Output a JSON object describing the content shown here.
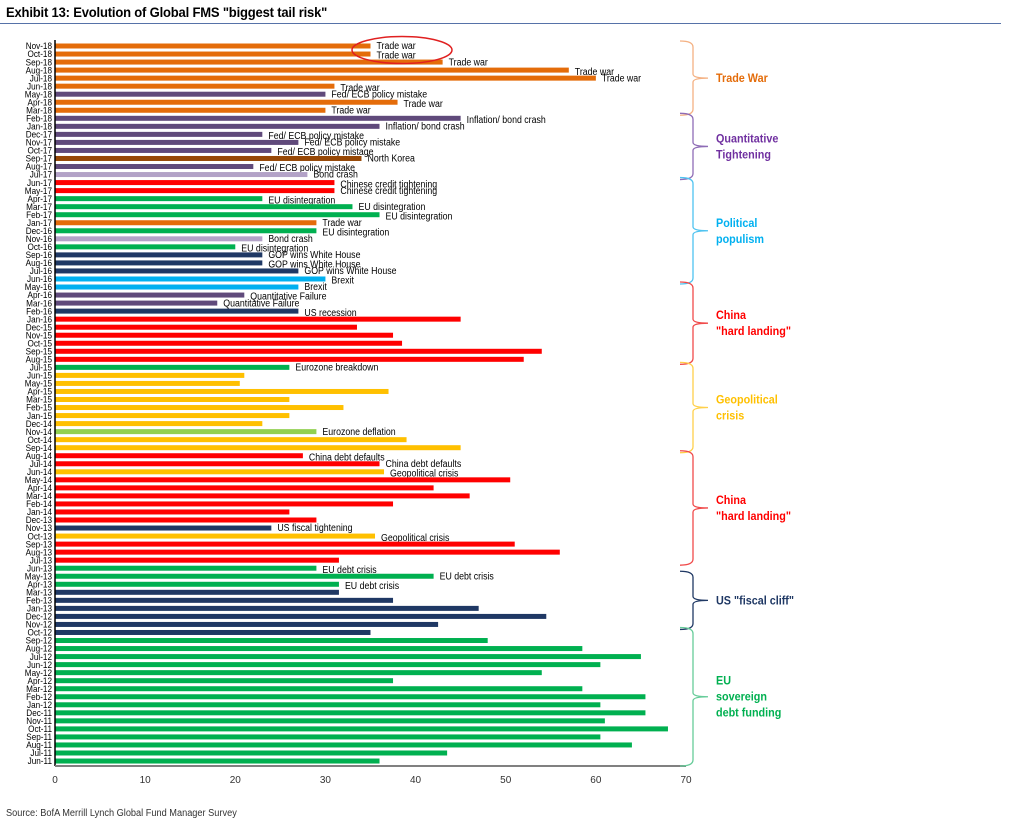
{
  "chart_data": {
    "type": "bar",
    "orientation": "horizontal",
    "title": "Exhibit 13: Evolution of Global FMS \"biggest tail risk\"",
    "xlabel": "",
    "ylabel": "",
    "xlim": [
      0,
      70
    ],
    "xticks": [
      "0",
      "10",
      "20",
      "30",
      "40",
      "50",
      "60",
      "70"
    ],
    "grid": false,
    "source": "Source: BofA Merrill Lynch Global Fund Manager Survey",
    "colors": {
      "trade": "#E46C0A",
      "fed": "#604A7B",
      "lavender": "#B3A2C7",
      "brown": "#974806",
      "red": "#FF0000",
      "green": "#00B050",
      "navy": "#1F3864",
      "lightblue": "#00B0F0",
      "yellow": "#FFC000",
      "lightgreen": "#92D050"
    },
    "bars": [
      {
        "category": "Nov-18",
        "value": 35,
        "color": "trade",
        "label": "Trade war"
      },
      {
        "category": "Oct-18",
        "value": 35,
        "color": "trade",
        "label": "Trade war"
      },
      {
        "category": "Sep-18",
        "value": 43,
        "color": "trade",
        "label": "Trade war"
      },
      {
        "category": "Aug-18",
        "value": 57,
        "color": "trade",
        "label": "Trade war"
      },
      {
        "category": "Jul-18",
        "value": 60,
        "color": "trade",
        "label": "Trade war"
      },
      {
        "category": "Jun-18",
        "value": 31,
        "color": "trade",
        "label": "Trade war"
      },
      {
        "category": "May-18",
        "value": 30,
        "color": "fed",
        "label": "Fed/ ECB policy mistake"
      },
      {
        "category": "Apr-18",
        "value": 38,
        "color": "trade",
        "label": "Trade war"
      },
      {
        "category": "Mar-18",
        "value": 30,
        "color": "trade",
        "label": "Trade war"
      },
      {
        "category": "Feb-18",
        "value": 45,
        "color": "fed",
        "label": "Inflation/ bond crash"
      },
      {
        "category": "Jan-18",
        "value": 36,
        "color": "fed",
        "label": "Inflation/ bond crash"
      },
      {
        "category": "Dec-17",
        "value": 23,
        "color": "fed",
        "label": "Fed/ ECB policy mistake"
      },
      {
        "category": "Nov-17",
        "value": 27,
        "color": "fed",
        "label": "Fed/ ECB policy mistake"
      },
      {
        "category": "Oct-17",
        "value": 24,
        "color": "fed",
        "label": "Fed/ ECB policy mistage"
      },
      {
        "category": "Sep-17",
        "value": 34,
        "color": "brown",
        "label": "North Korea"
      },
      {
        "category": "Aug-17",
        "value": 22,
        "color": "fed",
        "label": "Fed/ ECB policy mistake"
      },
      {
        "category": "Jul-17",
        "value": 28,
        "color": "lavender",
        "label": "Bond crash"
      },
      {
        "category": "Jun-17",
        "value": 31,
        "color": "red",
        "label": "Chinese credit tightening"
      },
      {
        "category": "May-17",
        "value": 31,
        "color": "red",
        "label": "Chinese credit tightening"
      },
      {
        "category": "Apr-17",
        "value": 23,
        "color": "green",
        "label": "EU disintegration"
      },
      {
        "category": "Mar-17",
        "value": 33,
        "color": "green",
        "label": "EU disintegration"
      },
      {
        "category": "Feb-17",
        "value": 36,
        "color": "green",
        "label": "EU disintegration"
      },
      {
        "category": "Jan-17",
        "value": 29,
        "color": "trade",
        "label": "Trade war"
      },
      {
        "category": "Dec-16",
        "value": 29,
        "color": "green",
        "label": "EU disintegration"
      },
      {
        "category": "Nov-16",
        "value": 23,
        "color": "lavender",
        "label": "Bond crash"
      },
      {
        "category": "Oct-16",
        "value": 20,
        "color": "green",
        "label": "EU disintegration"
      },
      {
        "category": "Sep-16",
        "value": 23,
        "color": "navy",
        "label": "GOP wins White House"
      },
      {
        "category": "Aug-16",
        "value": 23,
        "color": "navy",
        "label": "GOP wins White House"
      },
      {
        "category": "Jul-16",
        "value": 27,
        "color": "navy",
        "label": "GOP wins White House"
      },
      {
        "category": "Jun-16",
        "value": 30,
        "color": "lightblue",
        "label": "Brexit"
      },
      {
        "category": "May-16",
        "value": 27,
        "color": "lightblue",
        "label": "Brexit"
      },
      {
        "category": "Apr-16",
        "value": 21,
        "color": "fed",
        "label": "Quantitative Failure"
      },
      {
        "category": "Mar-16",
        "value": 18,
        "color": "fed",
        "label": "Quantitative Failure"
      },
      {
        "category": "Feb-16",
        "value": 27,
        "color": "navy",
        "label": "US recession"
      },
      {
        "category": "Jan-16",
        "value": 45,
        "color": "red",
        "label": ""
      },
      {
        "category": "Dec-15",
        "value": 33.5,
        "color": "red",
        "label": ""
      },
      {
        "category": "Nov-15",
        "value": 37.5,
        "color": "red",
        "label": ""
      },
      {
        "category": "Oct-15",
        "value": 38.5,
        "color": "red",
        "label": ""
      },
      {
        "category": "Sep-15",
        "value": 54,
        "color": "red",
        "label": ""
      },
      {
        "category": "Aug-15",
        "value": 52,
        "color": "red",
        "label": ""
      },
      {
        "category": "Jul-15",
        "value": 26,
        "color": "green",
        "label": "Eurozone breakdown"
      },
      {
        "category": "Jun-15",
        "value": 21,
        "color": "yellow",
        "label": ""
      },
      {
        "category": "May-15",
        "value": 20.5,
        "color": "yellow",
        "label": ""
      },
      {
        "category": "Apr-15",
        "value": 37,
        "color": "yellow",
        "label": ""
      },
      {
        "category": "Mar-15",
        "value": 26,
        "color": "yellow",
        "label": ""
      },
      {
        "category": "Feb-15",
        "value": 32,
        "color": "yellow",
        "label": ""
      },
      {
        "category": "Jan-15",
        "value": 26,
        "color": "yellow",
        "label": ""
      },
      {
        "category": "Dec-14",
        "value": 23,
        "color": "yellow",
        "label": ""
      },
      {
        "category": "Nov-14",
        "value": 29,
        "color": "lightgreen",
        "label": "Eurozone deflation"
      },
      {
        "category": "Oct-14",
        "value": 39,
        "color": "yellow",
        "label": ""
      },
      {
        "category": "Sep-14",
        "value": 45,
        "color": "yellow",
        "label": ""
      },
      {
        "category": "Aug-14",
        "value": 27.5,
        "color": "red",
        "label": "China debt defaults"
      },
      {
        "category": "Jul-14",
        "value": 36,
        "color": "red",
        "label": "China debt defaults"
      },
      {
        "category": "Jun-14",
        "value": 36.5,
        "color": "yellow",
        "label": "Geopolitical crisis"
      },
      {
        "category": "May-14",
        "value": 50.5,
        "color": "red",
        "label": ""
      },
      {
        "category": "Apr-14",
        "value": 42,
        "color": "red",
        "label": ""
      },
      {
        "category": "Mar-14",
        "value": 46,
        "color": "red",
        "label": ""
      },
      {
        "category": "Feb-14",
        "value": 37.5,
        "color": "red",
        "label": ""
      },
      {
        "category": "Jan-14",
        "value": 26,
        "color": "red",
        "label": ""
      },
      {
        "category": "Dec-13",
        "value": 29,
        "color": "red",
        "label": ""
      },
      {
        "category": "Nov-13",
        "value": 24,
        "color": "navy",
        "label": "US fiscal tightening"
      },
      {
        "category": "Oct-13",
        "value": 35.5,
        "color": "yellow",
        "label": "Geopolitical crisis"
      },
      {
        "category": "Sep-13",
        "value": 51,
        "color": "red",
        "label": ""
      },
      {
        "category": "Aug-13",
        "value": 56,
        "color": "red",
        "label": ""
      },
      {
        "category": "Jul-13",
        "value": 31.5,
        "color": "red",
        "label": ""
      },
      {
        "category": "Jun-13",
        "value": 29,
        "color": "green",
        "label": "EU debt crisis"
      },
      {
        "category": "May-13",
        "value": 42,
        "color": "green",
        "label": "EU debt crisis"
      },
      {
        "category": "Apr-13",
        "value": 31.5,
        "color": "green",
        "label": "EU debt crisis"
      },
      {
        "category": "Mar-13",
        "value": 31.5,
        "color": "navy",
        "label": ""
      },
      {
        "category": "Feb-13",
        "value": 37.5,
        "color": "navy",
        "label": ""
      },
      {
        "category": "Jan-13",
        "value": 47,
        "color": "navy",
        "label": ""
      },
      {
        "category": "Dec-12",
        "value": 54.5,
        "color": "navy",
        "label": ""
      },
      {
        "category": "Nov-12",
        "value": 42.5,
        "color": "navy",
        "label": ""
      },
      {
        "category": "Oct-12",
        "value": 35,
        "color": "navy",
        "label": ""
      },
      {
        "category": "Sep-12",
        "value": 48,
        "color": "green",
        "label": ""
      },
      {
        "category": "Aug-12",
        "value": 58.5,
        "color": "green",
        "label": ""
      },
      {
        "category": "Jul-12",
        "value": 65,
        "color": "green",
        "label": ""
      },
      {
        "category": "Jun-12",
        "value": 60.5,
        "color": "green",
        "label": ""
      },
      {
        "category": "May-12",
        "value": 54,
        "color": "green",
        "label": ""
      },
      {
        "category": "Apr-12",
        "value": 37.5,
        "color": "green",
        "label": ""
      },
      {
        "category": "Mar-12",
        "value": 58.5,
        "color": "green",
        "label": ""
      },
      {
        "category": "Feb-12",
        "value": 65.5,
        "color": "green",
        "label": ""
      },
      {
        "category": "Jan-12",
        "value": 60.5,
        "color": "green",
        "label": ""
      },
      {
        "category": "Dec-11",
        "value": 65.5,
        "color": "green",
        "label": ""
      },
      {
        "category": "Nov-11",
        "value": 61,
        "color": "green",
        "label": ""
      },
      {
        "category": "Oct-11",
        "value": 68,
        "color": "green",
        "label": ""
      },
      {
        "category": "Sep-11",
        "value": 60.5,
        "color": "green",
        "label": ""
      },
      {
        "category": "Aug-11",
        "value": 64,
        "color": "green",
        "label": ""
      },
      {
        "category": "Jul-11",
        "value": 43.5,
        "color": "green",
        "label": ""
      },
      {
        "category": "Jun-11",
        "value": 36,
        "color": "green",
        "label": ""
      }
    ],
    "groups": [
      {
        "label": [
          "Trade War"
        ],
        "from": "Nov-18",
        "to": "Mar-18",
        "color": "#E46C0A",
        "brace_color": "#F4B183"
      },
      {
        "label": [
          "Quantitative",
          "Tightening"
        ],
        "from": "Feb-18",
        "to": "Jul-17",
        "color": "#7030A0",
        "brace_color": "#8E6CB6"
      },
      {
        "label": [
          "Political",
          "populism"
        ],
        "from": "Jun-17",
        "to": "Jun-16",
        "color": "#00B0F0",
        "brace_color": "#4FC3F0"
      },
      {
        "label": [
          "China",
          "\"hard landing\""
        ],
        "from": "May-16",
        "to": "Aug-15",
        "color": "#FF0000",
        "brace_color": "#F04A4A"
      },
      {
        "label": [
          "Geopolitical",
          "crisis"
        ],
        "from": "Jul-15",
        "to": "Sep-14",
        "color": "#FFC000",
        "brace_color": "#FFD04A"
      },
      {
        "label": [
          "China",
          "\"hard landing\""
        ],
        "from": "Aug-14",
        "to": "Jul-13",
        "color": "#FF0000",
        "brace_color": "#F04A4A"
      },
      {
        "label": [
          "US \"fiscal cliff\""
        ],
        "from": "May-13",
        "to": "Nov-12",
        "color": "#1F3864",
        "brace_color": "#1F3864"
      },
      {
        "label": [
          "EU",
          "sovereign",
          "debt funding"
        ],
        "from": "Oct-12",
        "to": "Jun-11",
        "color": "#00B050",
        "brace_color": "#66CC99"
      }
    ],
    "annotations": [
      {
        "type": "ellipse",
        "around": [
          "Nov-18",
          "Oct-18"
        ],
        "color": "#E02020"
      }
    ]
  }
}
